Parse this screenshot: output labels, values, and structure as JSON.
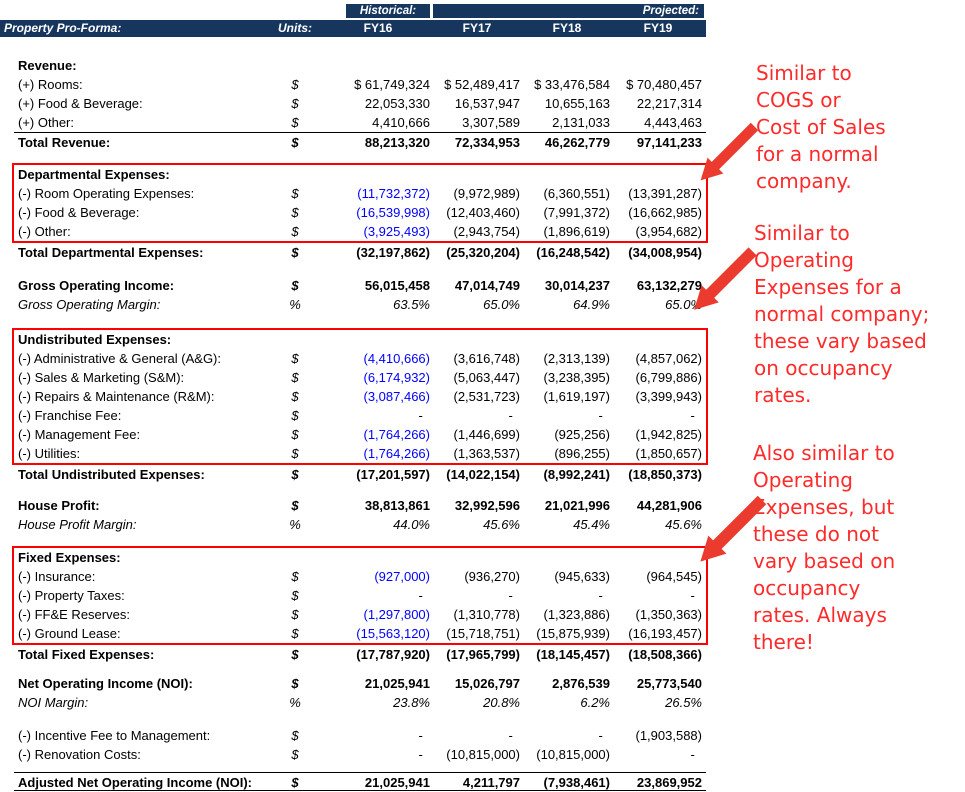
{
  "header": {
    "title": "Property Pro-Forma:",
    "units": "Units:",
    "historical": "Historical:",
    "projected": "Projected:",
    "years": [
      "FY16",
      "FY17",
      "FY18",
      "FY19"
    ]
  },
  "colors": {
    "header_navy": "#17365D",
    "input_blue": "#0000FF",
    "box_red": "#FF0000",
    "annotation_red": "#FF2B2B"
  },
  "blocks": [
    {
      "name": "revenue-section",
      "rows": [
        {
          "label": "Revenue:",
          "cls": "section"
        },
        {
          "label": "(+) Rooms:",
          "units": "$",
          "cls": "item",
          "values": [
            "$ 61,749,324",
            "$ 52,489,417",
            "$ 33,476,584",
            "$ 70,480,457"
          ]
        },
        {
          "label": "(+) Food & Beverage:",
          "units": "$",
          "cls": "item",
          "values": [
            "22,053,330",
            "16,537,947",
            "10,655,163",
            "22,217,314"
          ]
        },
        {
          "label": "(+) Other:",
          "units": "$",
          "cls": "item",
          "values": [
            "4,410,666",
            "3,307,589",
            "2,131,033",
            "4,443,463"
          ]
        },
        {
          "label": "Total Revenue:",
          "units": "$",
          "cls": "total topline",
          "values": [
            "88,213,320",
            "72,334,953",
            "46,262,779",
            "97,141,233"
          ]
        }
      ]
    },
    {
      "name": "departmental-expenses-box",
      "rows": [
        {
          "label": "Departmental Expenses:",
          "cls": "section"
        },
        {
          "label": "(-) Room Operating Expenses:",
          "units": "$",
          "cls": "item",
          "blue": true,
          "values": [
            "(11,732,372)",
            "(9,972,989)",
            "(6,360,551)",
            "(13,391,287)"
          ]
        },
        {
          "label": "(-) Food & Beverage:",
          "units": "$",
          "cls": "item",
          "blue": true,
          "values": [
            "(16,539,998)",
            "(12,403,460)",
            "(7,991,372)",
            "(16,662,985)"
          ]
        },
        {
          "label": "(-) Other:",
          "units": "$",
          "cls": "item",
          "blue": true,
          "values": [
            "(3,925,493)",
            "(2,943,754)",
            "(1,896,619)",
            "(3,954,682)"
          ]
        }
      ]
    },
    {
      "name": "total-departmental-row",
      "rows": [
        {
          "label": "Total Departmental Expenses:",
          "units": "$",
          "cls": "total",
          "values": [
            "(32,197,862)",
            "(25,320,204)",
            "(16,248,542)",
            "(34,008,954)"
          ]
        }
      ]
    },
    {
      "name": "gross-operating-section",
      "rows": [
        {
          "label": "Gross Operating Income:",
          "units": "$",
          "cls": "total",
          "values": [
            "56,015,458",
            "47,014,749",
            "30,014,237",
            "63,132,279"
          ]
        },
        {
          "label": "Gross Operating Margin:",
          "units": "%",
          "cls": "metric",
          "values": [
            "63.5%",
            "65.0%",
            "64.9%",
            "65.0%"
          ]
        }
      ]
    },
    {
      "name": "undistributed-expenses-box",
      "rows": [
        {
          "label": "Undistributed Expenses:",
          "cls": "section"
        },
        {
          "label": "(-) Administrative & General (A&G):",
          "units": "$",
          "cls": "item",
          "blue": true,
          "values": [
            "(4,410,666)",
            "(3,616,748)",
            "(2,313,139)",
            "(4,857,062)"
          ]
        },
        {
          "label": "(-) Sales & Marketing (S&M):",
          "units": "$",
          "cls": "item",
          "blue": true,
          "values": [
            "(6,174,932)",
            "(5,063,447)",
            "(3,238,395)",
            "(6,799,886)"
          ]
        },
        {
          "label": "(-) Repairs & Maintenance (R&M):",
          "units": "$",
          "cls": "item",
          "blue": true,
          "values": [
            "(3,087,466)",
            "(2,531,723)",
            "(1,619,197)",
            "(3,399,943)"
          ]
        },
        {
          "label": "(-) Franchise Fee:",
          "units": "$",
          "cls": "item",
          "values": [
            "-  ",
            "-  ",
            "-  ",
            "-  "
          ]
        },
        {
          "label": "(-) Management Fee:",
          "units": "$",
          "cls": "item",
          "blue": true,
          "values": [
            "(1,764,266)",
            "(1,446,699)",
            "(925,256)",
            "(1,942,825)"
          ]
        },
        {
          "label": "(-) Utilities:",
          "units": "$",
          "cls": "item",
          "blue": true,
          "values": [
            "(1,764,266)",
            "(1,363,537)",
            "(896,255)",
            "(1,850,657)"
          ]
        }
      ]
    },
    {
      "name": "total-undistributed-row",
      "rows": [
        {
          "label": "Total Undistributed Expenses:",
          "units": "$",
          "cls": "total",
          "values": [
            "(17,201,597)",
            "(14,022,154)",
            "(8,992,241)",
            "(18,850,373)"
          ]
        }
      ]
    },
    {
      "name": "house-profit-section",
      "rows": [
        {
          "label": "House Profit:",
          "units": "$",
          "cls": "total",
          "values": [
            "38,813,861",
            "32,992,596",
            "21,021,996",
            "44,281,906"
          ]
        },
        {
          "label": "House Profit Margin:",
          "units": "%",
          "cls": "metric",
          "values": [
            "44.0%",
            "45.6%",
            "45.4%",
            "45.6%"
          ]
        }
      ]
    },
    {
      "name": "fixed-expenses-box",
      "rows": [
        {
          "label": "Fixed Expenses:",
          "cls": "section"
        },
        {
          "label": "(-) Insurance:",
          "units": "$",
          "cls": "item",
          "blue": true,
          "values": [
            "(927,000)",
            "(936,270)",
            "(945,633)",
            "(964,545)"
          ]
        },
        {
          "label": "(-) Property Taxes:",
          "units": "$",
          "cls": "item",
          "values": [
            "-  ",
            "-  ",
            "-  ",
            "-  "
          ]
        },
        {
          "label": "(-) FF&E Reserves:",
          "units": "$",
          "cls": "item",
          "blue": true,
          "values": [
            "(1,297,800)",
            "(1,310,778)",
            "(1,323,886)",
            "(1,350,363)"
          ]
        },
        {
          "label": "(-) Ground Lease:",
          "units": "$",
          "cls": "item",
          "blue": true,
          "values": [
            "(15,563,120)",
            "(15,718,751)",
            "(15,875,939)",
            "(16,193,457)"
          ]
        }
      ]
    },
    {
      "name": "total-fixed-row",
      "rows": [
        {
          "label": "Total Fixed Expenses:",
          "units": "$",
          "cls": "total",
          "values": [
            "(17,787,920)",
            "(17,965,799)",
            "(18,145,457)",
            "(18,508,366)"
          ]
        }
      ]
    },
    {
      "name": "noi-section",
      "rows": [
        {
          "label": "Net Operating Income (NOI):",
          "units": "$",
          "cls": "total",
          "values": [
            "21,025,941",
            "15,026,797",
            "2,876,539",
            "25,773,540"
          ]
        },
        {
          "label": "NOI Margin:",
          "units": "%",
          "cls": "metric",
          "values": [
            "23.8%",
            "20.8%",
            "6.2%",
            "26.5%"
          ]
        }
      ]
    },
    {
      "name": "adjustments-section",
      "rows": [
        {
          "label": "(-) Incentive Fee to Management:",
          "units": "$",
          "cls": "item",
          "values": [
            "-  ",
            "-  ",
            "-  ",
            "(1,903,588)"
          ]
        },
        {
          "label": "(-) Renovation Costs:",
          "units": "$",
          "cls": "item",
          "values": [
            "-  ",
            "(10,815,000)",
            "(10,815,000)",
            "-  "
          ]
        }
      ]
    },
    {
      "name": "adjusted-noi-row",
      "rows": [
        {
          "label": "Adjusted Net Operating Income (NOI):",
          "units": "$",
          "cls": "total topline bottomline",
          "values": [
            "21,025,941",
            "4,211,797",
            "(7,938,461)",
            "23,869,952"
          ]
        }
      ]
    }
  ],
  "annotations": [
    {
      "text": "Similar to\nCOGS or\nCost of Sales\nfor a normal\ncompany."
    },
    {
      "text": "Similar to\nOperating\nExpenses for a\nnormal company;\nthese vary based\non occupancy\nrates."
    },
    {
      "text": "Also similar to\nOperating\nExpenses, but\nthese do not\nvary based on\noccupancy\nrates. Always\nthere!"
    }
  ]
}
